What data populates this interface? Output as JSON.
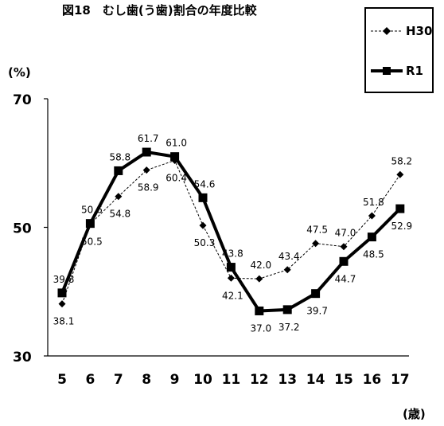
{
  "chart_data": {
    "type": "line",
    "title": "図18　むし歯(う歯)割合の年度比較",
    "ylabel": "(%)",
    "xlabel": "(歳)",
    "ylim": [
      30,
      70
    ],
    "yticks": [
      "30",
      "50",
      "70"
    ],
    "categories": [
      "5",
      "6",
      "7",
      "8",
      "9",
      "10",
      "11",
      "12",
      "13",
      "14",
      "15",
      "16",
      "17"
    ],
    "legend_position": "top-right",
    "grid": false,
    "series": [
      {
        "name": "H30",
        "style": "dashed-diamond",
        "color": "#000000",
        "values": [
          38.1,
          50.5,
          54.8,
          58.9,
          60.4,
          50.3,
          42.1,
          42.0,
          43.4,
          47.5,
          47.0,
          51.8,
          58.2
        ],
        "labels": [
          "38.1",
          "50.5",
          "54.8",
          "58.9",
          "60.4",
          "50.3",
          "42.1",
          "42.0",
          "43.4",
          "47.5",
          "47.0",
          "51.8",
          "58.2"
        ]
      },
      {
        "name": "R1",
        "style": "bold-square",
        "color": "#000000",
        "values": [
          39.8,
          50.6,
          58.8,
          61.7,
          61.0,
          54.6,
          43.8,
          37.0,
          37.2,
          39.7,
          44.7,
          48.5,
          52.9
        ],
        "labels": [
          "39.8",
          "50.6",
          "58.8",
          "61.7",
          "61.0",
          "54.6",
          "43.8",
          "37.0",
          "37.2",
          "39.7",
          "44.7",
          "48.5",
          "52.9"
        ]
      }
    ]
  }
}
